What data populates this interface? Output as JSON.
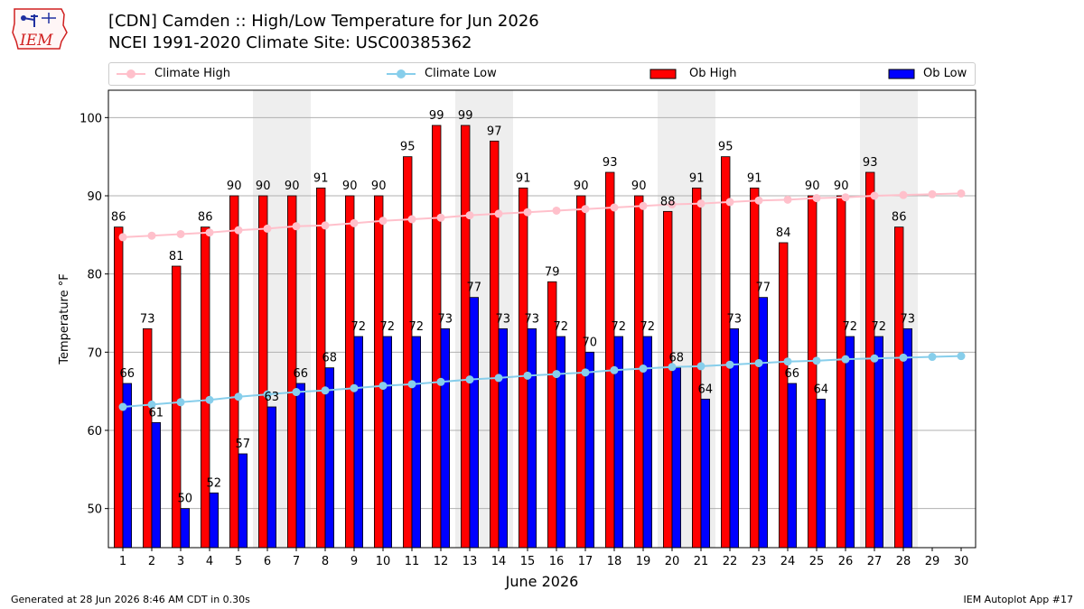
{
  "header": {
    "title": "[CDN] Camden :: High/Low Temperature for Jun 2026",
    "subtitle": "NCEI 1991-2020 Climate Site: USC00385362",
    "logo_text": "IEM"
  },
  "footer": {
    "generated": "Generated at 28 Jun 2026 8:46 AM CDT in 0.30s",
    "app": "IEM Autoplot App #17"
  },
  "colors": {
    "ob_high": "#ff0000",
    "ob_low": "#0000ff",
    "climate_high": "#ffc0cb",
    "climate_low": "#87ceeb",
    "weekend_shade": "#eeeeee",
    "grid": "#b0b0b0"
  },
  "chart_data": {
    "type": "bar",
    "title": "[CDN] Camden :: High/Low Temperature for Jun 2026",
    "xlabel": "June 2026",
    "ylabel": "Temperature °F",
    "ylim": [
      45,
      103.5
    ],
    "yticks": [
      50,
      60,
      70,
      80,
      90,
      100
    ],
    "grid": true,
    "legend_position": "top",
    "x": [
      1,
      2,
      3,
      4,
      5,
      6,
      7,
      8,
      9,
      10,
      11,
      12,
      13,
      14,
      15,
      16,
      17,
      18,
      19,
      20,
      21,
      22,
      23,
      24,
      25,
      26,
      27,
      28,
      29,
      30
    ],
    "shaded_days": [
      6,
      7,
      13,
      14,
      20,
      21,
      27,
      28
    ],
    "series": [
      {
        "name": "Climate High",
        "kind": "line",
        "values": [
          84.7,
          84.9,
          85.1,
          85.3,
          85.6,
          85.8,
          86.1,
          86.2,
          86.5,
          86.8,
          87.0,
          87.2,
          87.5,
          87.7,
          87.9,
          88.1,
          88.3,
          88.5,
          88.7,
          88.9,
          89.0,
          89.2,
          89.4,
          89.5,
          89.7,
          89.8,
          90.0,
          90.1,
          90.2,
          90.3
        ]
      },
      {
        "name": "Climate Low",
        "kind": "line",
        "values": [
          63.0,
          63.3,
          63.6,
          63.9,
          64.3,
          64.6,
          64.9,
          65.1,
          65.4,
          65.7,
          65.9,
          66.2,
          66.5,
          66.7,
          67.0,
          67.2,
          67.4,
          67.7,
          67.9,
          68.1,
          68.2,
          68.4,
          68.6,
          68.8,
          68.9,
          69.1,
          69.2,
          69.3,
          69.4,
          69.5
        ]
      },
      {
        "name": "Ob High",
        "kind": "bar",
        "values": [
          86,
          73,
          81,
          86,
          90,
          90,
          90,
          91,
          90,
          90,
          95,
          99,
          99,
          97,
          91,
          79,
          90,
          93,
          90,
          88,
          91,
          95,
          91,
          84,
          90,
          90,
          93,
          86,
          null,
          null
        ]
      },
      {
        "name": "Ob Low",
        "kind": "bar",
        "values": [
          66,
          61,
          50,
          52,
          57,
          63,
          66,
          68,
          72,
          72,
          72,
          73,
          77,
          73,
          73,
          72,
          70,
          72,
          72,
          68,
          64,
          73,
          77,
          66,
          64,
          72,
          72,
          73,
          null,
          null
        ]
      }
    ]
  }
}
